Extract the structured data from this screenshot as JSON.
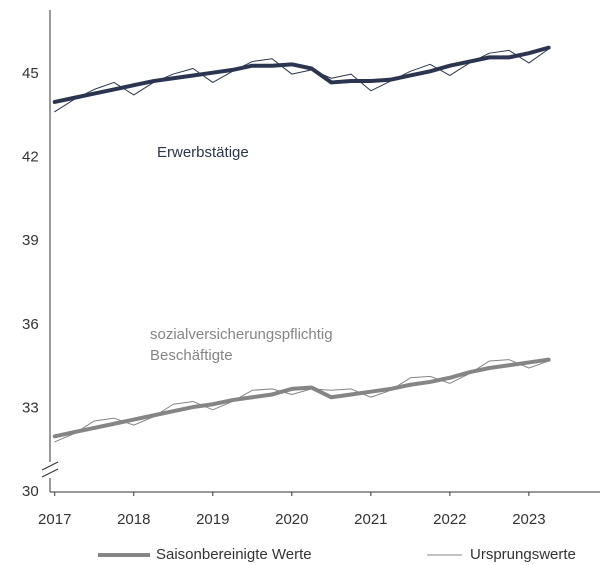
{
  "chart_data": {
    "type": "line",
    "x": [
      2017.0,
      2017.25,
      2017.5,
      2017.75,
      2018.0,
      2018.25,
      2018.5,
      2018.75,
      2019.0,
      2019.25,
      2019.5,
      2019.75,
      2020.0,
      2020.25,
      2020.5,
      2020.75,
      2021.0,
      2021.25,
      2021.5,
      2021.75,
      2022.0,
      2022.25,
      2022.5,
      2022.75,
      2023.0,
      2023.25
    ],
    "xlim": [
      2016.94,
      2023.9
    ],
    "xticks": [
      2017,
      2018,
      2019,
      2020,
      2021,
      2022,
      2023
    ],
    "ylim": [
      30,
      47.3
    ],
    "yticks": [
      30,
      33,
      36,
      39,
      42,
      45
    ],
    "legend": [
      "Saisonbereinigte Werte",
      "Ursprungswerte"
    ],
    "legend_color": "#858585",
    "groups": [
      {
        "label": [
          "Erwerbstätige"
        ],
        "color": "#2b3550",
        "adjusted": [
          44.0,
          44.15,
          44.3,
          44.45,
          44.6,
          44.75,
          44.85,
          44.95,
          45.05,
          45.15,
          45.3,
          45.3,
          45.35,
          45.2,
          44.7,
          44.75,
          44.75,
          44.8,
          44.95,
          45.1,
          45.3,
          45.45,
          45.6,
          45.6,
          45.75,
          45.95
        ],
        "original": [
          43.65,
          44.1,
          44.45,
          44.7,
          44.25,
          44.7,
          45.0,
          45.2,
          44.7,
          45.1,
          45.45,
          45.55,
          45.0,
          45.15,
          44.85,
          45.0,
          44.4,
          44.75,
          45.1,
          45.35,
          44.95,
          45.4,
          45.75,
          45.85,
          45.4,
          45.9
        ]
      },
      {
        "label": [
          "sozialversicherungspflichtig",
          "Beschäftigte"
        ],
        "color": "#858585",
        "adjusted": [
          32.0,
          32.15,
          32.3,
          32.45,
          32.6,
          32.75,
          32.9,
          33.05,
          33.15,
          33.3,
          33.4,
          33.5,
          33.7,
          33.75,
          33.4,
          33.5,
          33.6,
          33.7,
          33.85,
          33.95,
          34.1,
          34.3,
          34.45,
          34.55,
          34.65,
          34.75
        ],
        "original": [
          31.8,
          32.1,
          32.55,
          32.65,
          32.4,
          32.7,
          33.15,
          33.25,
          32.95,
          33.25,
          33.65,
          33.7,
          33.5,
          33.7,
          33.65,
          33.7,
          33.4,
          33.65,
          34.1,
          34.15,
          33.9,
          34.25,
          34.7,
          34.75,
          34.45,
          34.7
        ]
      }
    ]
  }
}
